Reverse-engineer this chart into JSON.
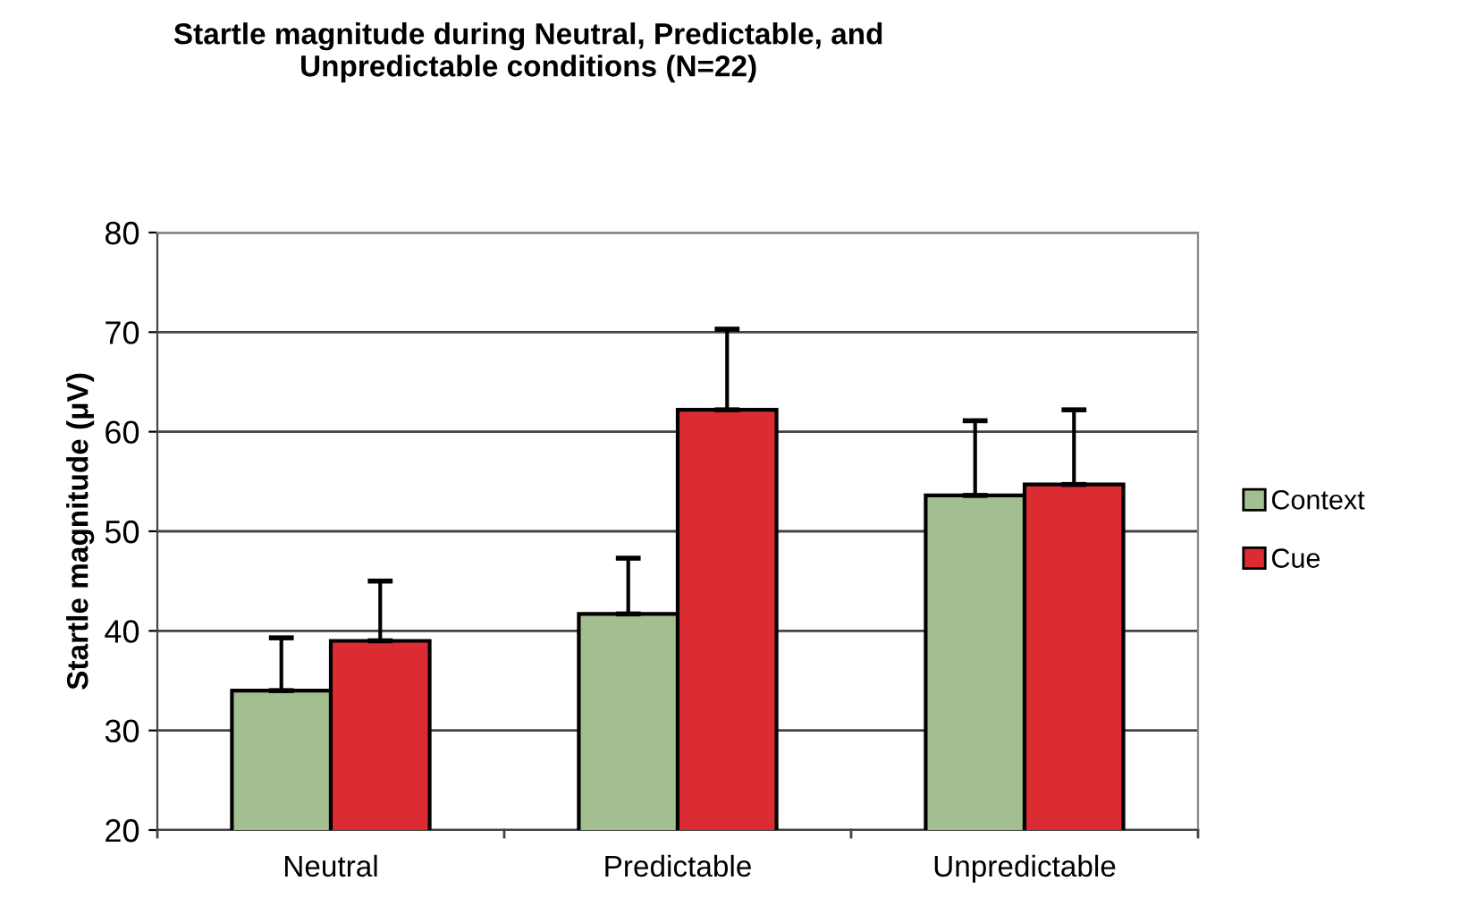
{
  "chart_data": {
    "type": "bar",
    "title": "Startle magnitude during Neutral, Predictable, and\nUnpredictable conditions (N=22)",
    "ylabel": "Startle magnitude (μV)",
    "categories": [
      "Neutral",
      "Predictable",
      "Unpredictable"
    ],
    "series": [
      {
        "name": "Context",
        "color": "#a3be8f",
        "values": [
          34.0,
          41.7,
          53.6
        ],
        "errors": [
          [
            34.0,
            39.3
          ],
          [
            41.7,
            47.3
          ],
          [
            53.6,
            61.1
          ]
        ]
      },
      {
        "name": "Cue",
        "color": "#dc2b32",
        "values": [
          39.0,
          62.2,
          54.7
        ],
        "errors": [
          [
            39.0,
            45.0
          ],
          [
            62.2,
            70.3
          ],
          [
            54.7,
            62.2
          ]
        ]
      }
    ],
    "ylim": [
      20,
      80
    ],
    "yticks": [
      20,
      30,
      40,
      50,
      60,
      70,
      80
    ],
    "grid": "y",
    "legend": "right"
  }
}
